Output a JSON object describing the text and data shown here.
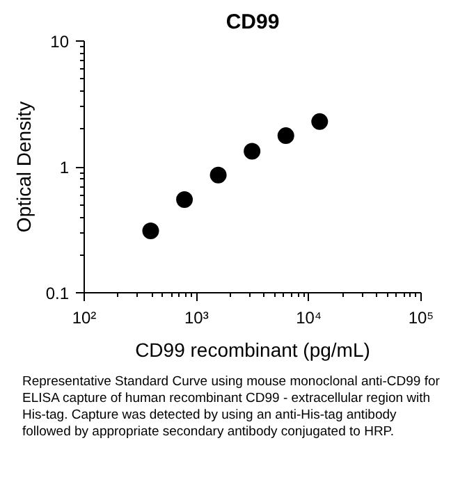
{
  "chart_data": {
    "type": "scatter",
    "title": "CD99",
    "xlabel": "CD99 recombinant (pg/mL)",
    "ylabel": "Optical Density",
    "x": [
      390.625,
      781.25,
      1562.5,
      3125,
      6250,
      12500
    ],
    "series": [
      {
        "color": "#000000",
        "values": [
          0.31,
          0.55,
          0.86,
          1.33,
          1.77,
          2.29
        ]
      }
    ],
    "log": "xy",
    "xlim": [
      100,
      100000
    ],
    "ylim": [
      0.1,
      10
    ],
    "xticks": [
      {
        "value": 100,
        "label": "10²"
      },
      {
        "value": 1000,
        "label": "10³"
      },
      {
        "value": 10000,
        "label": "10⁴"
      },
      {
        "value": 100000,
        "label": "10⁵"
      }
    ],
    "yticks": [
      0.1,
      1,
      10
    ],
    "grid": false,
    "marker": "circle",
    "annotations": [
      "Representative Standard Curve using mouse monoclonal anti-CD99 for ELISA capture of human recombinant CD99 - extracellular region with His-tag. Capture was detected by using an anti-His-tag antibody followed by appropriate secondary antibody conjugated to HRP."
    ]
  }
}
